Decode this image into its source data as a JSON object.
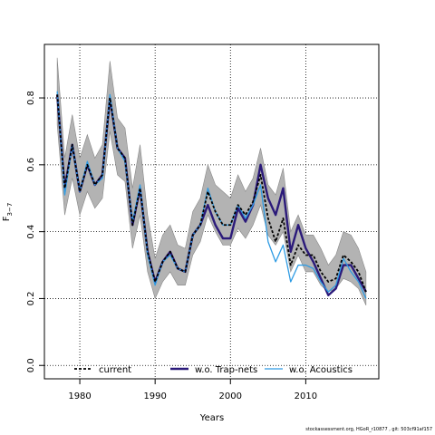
{
  "chart_data": {
    "type": "line",
    "xlabel": "Years",
    "ylabel_main": "F",
    "ylabel_sub": "3−7",
    "xlim": [
      1975.3,
      2019.7
    ],
    "ylim": [
      -0.04,
      0.96
    ],
    "xticks": [
      1980,
      1990,
      2000,
      2010
    ],
    "yticks": [
      0.0,
      0.2,
      0.4,
      0.6,
      0.8
    ],
    "ytick_labels": [
      "0.0",
      "0.2",
      "0.4",
      "0.6",
      "0.8"
    ],
    "grid": "dotted at ticks",
    "legend_position": "bottom",
    "x": [
      1977,
      1978,
      1979,
      1980,
      1981,
      1982,
      1983,
      1984,
      1985,
      1986,
      1987,
      1988,
      1989,
      1990,
      1991,
      1992,
      1993,
      1994,
      1995,
      1996,
      1997,
      1998,
      1999,
      2000,
      2001,
      2002,
      2003,
      2004,
      2005,
      2006,
      2007,
      2008,
      2009,
      2010,
      2011,
      2012,
      2013,
      2014,
      2015,
      2016,
      2017,
      2018
    ],
    "band": {
      "upper": [
        0.92,
        0.62,
        0.75,
        0.62,
        0.69,
        0.62,
        0.66,
        0.91,
        0.74,
        0.71,
        0.53,
        0.66,
        0.45,
        0.32,
        0.39,
        0.42,
        0.36,
        0.35,
        0.46,
        0.5,
        0.6,
        0.54,
        0.52,
        0.5,
        0.57,
        0.52,
        0.56,
        0.65,
        0.54,
        0.51,
        0.59,
        0.4,
        0.45,
        0.39,
        0.39,
        0.35,
        0.3,
        0.33,
        0.4,
        0.39,
        0.35,
        0.28
      ],
      "lower": [
        0.72,
        0.45,
        0.56,
        0.45,
        0.52,
        0.47,
        0.5,
        0.7,
        0.57,
        0.55,
        0.35,
        0.45,
        0.28,
        0.2,
        0.25,
        0.28,
        0.24,
        0.24,
        0.33,
        0.37,
        0.45,
        0.4,
        0.36,
        0.36,
        0.41,
        0.38,
        0.42,
        0.48,
        0.39,
        0.36,
        0.4,
        0.28,
        0.33,
        0.28,
        0.28,
        0.24,
        0.22,
        0.23,
        0.26,
        0.25,
        0.23,
        0.18
      ]
    },
    "series": [
      {
        "name": "current",
        "color": "#000000",
        "dash": "3,2",
        "values": [
          0.81,
          0.53,
          0.66,
          0.52,
          0.6,
          0.54,
          0.57,
          0.8,
          0.65,
          0.62,
          0.42,
          0.53,
          0.34,
          0.25,
          0.31,
          0.34,
          0.29,
          0.28,
          0.39,
          0.42,
          0.52,
          0.46,
          0.42,
          0.42,
          0.48,
          0.45,
          0.49,
          0.57,
          0.44,
          0.37,
          0.44,
          0.3,
          0.36,
          0.33,
          0.33,
          0.28,
          0.25,
          0.26,
          0.33,
          0.31,
          0.28,
          0.22
        ]
      },
      {
        "name": "w.o. Trap-nets",
        "color": "#2b1a7a",
        "values": [
          0.81,
          0.53,
          0.66,
          0.52,
          0.6,
          0.54,
          0.57,
          0.8,
          0.65,
          0.62,
          0.42,
          0.53,
          0.34,
          0.25,
          0.31,
          0.34,
          0.29,
          0.28,
          0.39,
          0.42,
          0.48,
          0.42,
          0.38,
          0.38,
          0.47,
          0.43,
          0.48,
          0.6,
          0.5,
          0.45,
          0.53,
          0.34,
          0.42,
          0.35,
          0.31,
          0.26,
          0.21,
          0.23,
          0.3,
          0.3,
          0.26,
          0.22
        ]
      },
      {
        "name": "w.o. Acoustics",
        "color": "#2e9be3",
        "values": [
          0.82,
          0.51,
          0.66,
          0.52,
          0.61,
          0.54,
          0.56,
          0.81,
          0.65,
          0.61,
          0.43,
          0.54,
          0.33,
          0.24,
          0.31,
          0.33,
          0.29,
          0.28,
          0.39,
          0.42,
          0.53,
          0.46,
          0.42,
          0.42,
          0.48,
          0.44,
          0.48,
          0.54,
          0.37,
          0.31,
          0.36,
          0.25,
          0.3,
          0.3,
          0.29,
          0.25,
          0.22,
          0.24,
          0.32,
          0.28,
          0.25,
          0.2
        ]
      }
    ]
  },
  "footer": "stockassessment.org, HGoR_r10877 , git: 503cf91af157"
}
